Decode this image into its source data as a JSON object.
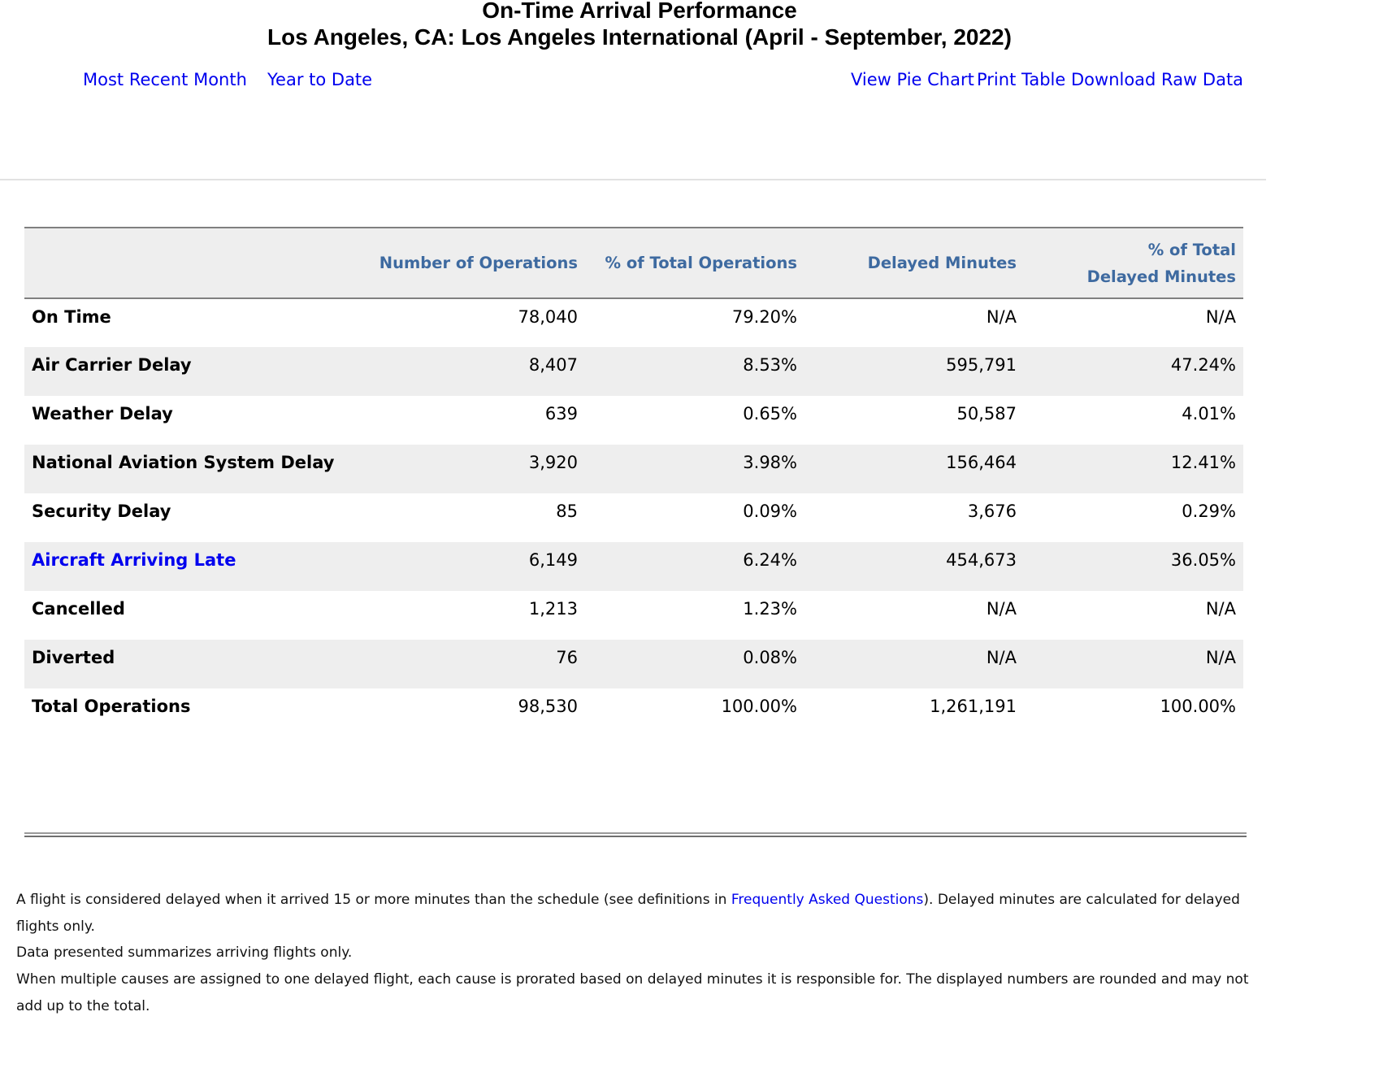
{
  "header": {
    "title_line1": "On-Time Arrival Performance",
    "title_line2": "Los Angeles, CA: Los Angeles International (April - September, 2022)"
  },
  "nav": {
    "most_recent_month": "Most Recent Month",
    "year_to_date": "Year to Date",
    "view_pie_chart": "View Pie Chart",
    "print_table": "Print Table",
    "download_raw_data": "Download Raw Data"
  },
  "table": {
    "columns": {
      "number_of_operations": "Number of Operations",
      "pct_total_operations": "% of Total Operations",
      "delayed_minutes": "Delayed Minutes",
      "pct_total_delayed_minutes_line1": "% of Total",
      "pct_total_delayed_minutes_line2": "Delayed Minutes"
    },
    "rows": [
      {
        "label": "On Time",
        "ops": "78,040",
        "pct_ops": "79.20%",
        "delayed_min": "N/A",
        "pct_delayed": "N/A"
      },
      {
        "label": "Air Carrier Delay",
        "ops": "8,407",
        "pct_ops": "8.53%",
        "delayed_min": "595,791",
        "pct_delayed": "47.24%"
      },
      {
        "label": "Weather Delay",
        "ops": "639",
        "pct_ops": "0.65%",
        "delayed_min": "50,587",
        "pct_delayed": "4.01%"
      },
      {
        "label": "National Aviation System Delay",
        "ops": "3,920",
        "pct_ops": "3.98%",
        "delayed_min": "156,464",
        "pct_delayed": "12.41%"
      },
      {
        "label": "Security Delay",
        "ops": "85",
        "pct_ops": "0.09%",
        "delayed_min": "3,676",
        "pct_delayed": "0.29%"
      },
      {
        "label": "Aircraft Arriving Late",
        "ops": "6,149",
        "pct_ops": "6.24%",
        "delayed_min": "454,673",
        "pct_delayed": "36.05%"
      },
      {
        "label": "Cancelled",
        "ops": "1,213",
        "pct_ops": "1.23%",
        "delayed_min": "N/A",
        "pct_delayed": "N/A"
      },
      {
        "label": "Diverted",
        "ops": "76",
        "pct_ops": "0.08%",
        "delayed_min": "N/A",
        "pct_delayed": "N/A"
      },
      {
        "label": "Total Operations",
        "ops": "98,530",
        "pct_ops": "100.00%",
        "delayed_min": "1,261,191",
        "pct_delayed": "100.00%"
      }
    ]
  },
  "notes": {
    "line1_before_link": "A flight is considered delayed when it arrived 15 or more minutes than the schedule (see definitions in ",
    "faq_link": "Frequently Asked Questions",
    "line1_after_link": "). Delayed minutes are calculated for delayed flights only.",
    "line2": "Data presented summarizes arriving flights only.",
    "line3": "When multiple causes are assigned to one delayed flight, each cause is prorated based on delayed minutes it is responsible for. The displayed numbers are rounded and may not add up to the total."
  },
  "colors": {
    "link": "#0000ee",
    "header_text": "#3e6aa0",
    "stripe": "#eeeeee"
  }
}
